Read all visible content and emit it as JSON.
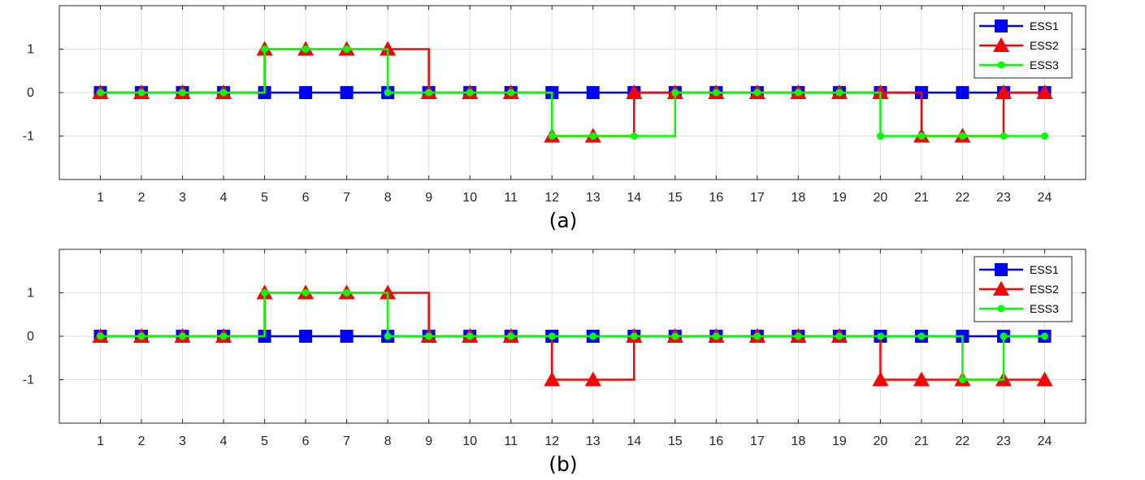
{
  "chart_data": [
    {
      "type": "line",
      "line_shape": "step",
      "caption": "(a)",
      "x": [
        1,
        2,
        3,
        4,
        5,
        6,
        7,
        8,
        9,
        10,
        11,
        12,
        13,
        14,
        15,
        16,
        17,
        18,
        19,
        20,
        21,
        22,
        23,
        24
      ],
      "xticks": [
        "1",
        "2",
        "3",
        "4",
        "5",
        "6",
        "7",
        "8",
        "9",
        "10",
        "11",
        "12",
        "13",
        "14",
        "15",
        "16",
        "17",
        "18",
        "19",
        "20",
        "21",
        "22",
        "23",
        "24"
      ],
      "xlim": [
        0,
        25
      ],
      "ylim": [
        -2,
        2
      ],
      "yticks": [
        "-1",
        "0",
        "1"
      ],
      "grid": true,
      "legend": "top-right",
      "series": [
        {
          "name": "ESS1",
          "color": "#0000ff",
          "marker": "square",
          "values": [
            0,
            0,
            0,
            0,
            0,
            0,
            0,
            0,
            0,
            0,
            0,
            0,
            0,
            0,
            0,
            0,
            0,
            0,
            0,
            0,
            0,
            0,
            0,
            0
          ]
        },
        {
          "name": "ESS2",
          "color": "#ff0000",
          "marker": "triangle",
          "values": [
            0,
            0,
            0,
            0,
            1,
            1,
            1,
            1,
            0,
            0,
            0,
            -1,
            -1,
            0,
            0,
            0,
            0,
            0,
            0,
            0,
            -1,
            -1,
            0,
            0
          ]
        },
        {
          "name": "ESS3",
          "color": "#00ff00",
          "marker": "circle",
          "values": [
            0,
            0,
            0,
            0,
            1,
            1,
            1,
            0,
            0,
            0,
            0,
            -1,
            -1,
            -1,
            0,
            0,
            0,
            0,
            0,
            -1,
            -1,
            -1,
            -1,
            -1
          ]
        }
      ]
    },
    {
      "type": "line",
      "line_shape": "step",
      "caption": "(b)",
      "x": [
        1,
        2,
        3,
        4,
        5,
        6,
        7,
        8,
        9,
        10,
        11,
        12,
        13,
        14,
        15,
        16,
        17,
        18,
        19,
        20,
        21,
        22,
        23,
        24
      ],
      "xticks": [
        "1",
        "2",
        "3",
        "4",
        "5",
        "6",
        "7",
        "8",
        "9",
        "10",
        "11",
        "12",
        "13",
        "14",
        "15",
        "16",
        "17",
        "18",
        "19",
        "20",
        "21",
        "22",
        "23",
        "24"
      ],
      "xlim": [
        0,
        25
      ],
      "ylim": [
        -2,
        2
      ],
      "yticks": [
        "-1",
        "0",
        "1"
      ],
      "grid": true,
      "legend": "top-right",
      "series": [
        {
          "name": "ESS1",
          "color": "#0000ff",
          "marker": "square",
          "values": [
            0,
            0,
            0,
            0,
            0,
            0,
            0,
            0,
            0,
            0,
            0,
            0,
            0,
            0,
            0,
            0,
            0,
            0,
            0,
            0,
            0,
            0,
            0,
            0
          ]
        },
        {
          "name": "ESS2",
          "color": "#ff0000",
          "marker": "triangle",
          "values": [
            0,
            0,
            0,
            0,
            1,
            1,
            1,
            1,
            0,
            0,
            0,
            -1,
            -1,
            0,
            0,
            0,
            0,
            0,
            0,
            -1,
            -1,
            -1,
            -1,
            -1
          ]
        },
        {
          "name": "ESS3",
          "color": "#00ff00",
          "marker": "circle",
          "values": [
            0,
            0,
            0,
            0,
            1,
            1,
            1,
            0,
            0,
            0,
            0,
            0,
            0,
            0,
            0,
            0,
            0,
            0,
            0,
            0,
            0,
            -1,
            0,
            0
          ]
        }
      ]
    }
  ]
}
